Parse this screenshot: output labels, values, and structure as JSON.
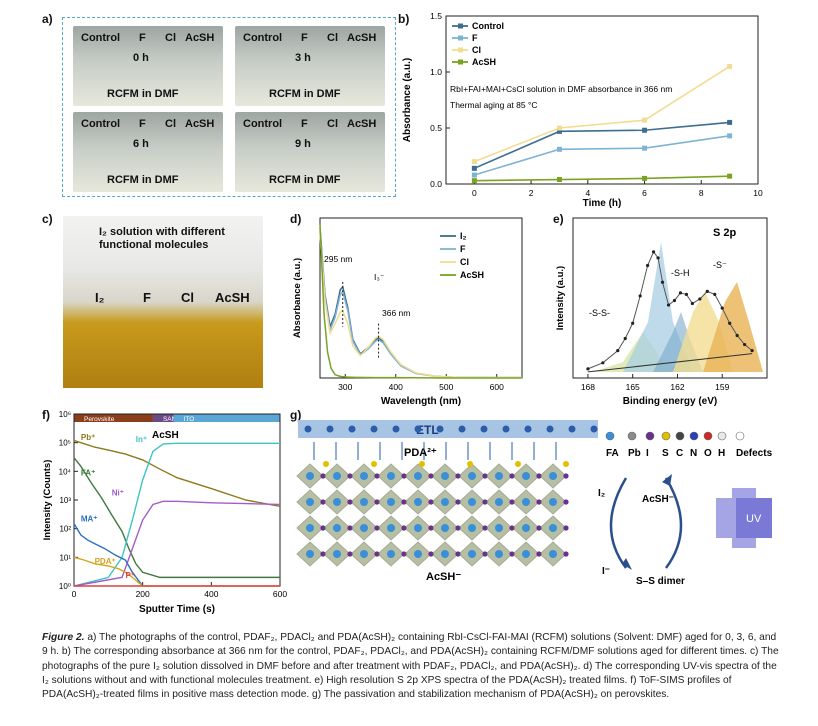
{
  "panels": {
    "a": "a)",
    "b": "b)",
    "c": "c)",
    "d": "d)",
    "e": "e)",
    "f": "f)",
    "g": "g)"
  },
  "panel_a": {
    "vials": [
      {
        "labels": [
          "Control",
          "F",
          "Cl",
          "AcSH"
        ],
        "time": "0 h",
        "solvent": "RCFM in DMF"
      },
      {
        "labels": [
          "Control",
          "F",
          "Cl",
          "AcSH"
        ],
        "time": "3 h",
        "solvent": "RCFM in DMF"
      },
      {
        "labels": [
          "Control",
          "F",
          "Cl",
          "AcSH"
        ],
        "time": "6 h",
        "solvent": "RCFM in DMF"
      },
      {
        "labels": [
          "Control",
          "F",
          "Cl",
          "AcSH"
        ],
        "time": "9 h",
        "solvent": "RCFM in DMF"
      }
    ]
  },
  "panel_c": {
    "title_line1": "I₂ solution with different",
    "title_line2": "functional molecules",
    "labels": [
      "I₂",
      "F",
      "Cl",
      "AcSH"
    ]
  },
  "chart_data": [
    {
      "type": "line",
      "panel": "b",
      "xlabel": "Time (h)",
      "ylabel": "Absorbance (a.u.)",
      "xlim": [
        -1,
        10
      ],
      "ylim": [
        0,
        1.5
      ],
      "xticks": [
        0,
        2,
        4,
        6,
        8,
        10
      ],
      "yticks": [
        0.0,
        0.5,
        1.0,
        1.5
      ],
      "annotation1": "RbI+FAI+MAI+CsCl solution in DMF absorbance in 366 nm",
      "annotation2": "Thermal aging at 85 °C",
      "series": [
        {
          "name": "Control",
          "color": "#3d6e8f",
          "x": [
            0,
            3,
            6,
            9
          ],
          "y": [
            0.14,
            0.47,
            0.48,
            0.55
          ]
        },
        {
          "name": "F",
          "color": "#7fb3d3",
          "x": [
            0,
            3,
            6,
            9
          ],
          "y": [
            0.08,
            0.31,
            0.32,
            0.43
          ]
        },
        {
          "name": "Cl",
          "color": "#f2dc92",
          "x": [
            0,
            3,
            6,
            9
          ],
          "y": [
            0.2,
            0.5,
            0.57,
            1.05
          ]
        },
        {
          "name": "AcSH",
          "color": "#7ba322",
          "x": [
            0,
            3,
            6,
            9
          ],
          "y": [
            0.03,
            0.04,
            0.05,
            0.07
          ]
        }
      ]
    },
    {
      "type": "line",
      "panel": "d",
      "xlabel": "Wavelength (nm)",
      "ylabel": "Absorbance (a.u.)",
      "xlim": [
        250,
        650
      ],
      "ylim": [
        0,
        5
      ],
      "xticks": [
        300,
        400,
        500,
        600
      ],
      "peak1": "295 nm",
      "peak2": "366 nm",
      "species": "I₃⁻",
      "series": [
        {
          "name": "I₂",
          "color": "#3d6e8f",
          "x": [
            250,
            260,
            270,
            280,
            290,
            295,
            305,
            315,
            330,
            345,
            360,
            366,
            375,
            390,
            410,
            440,
            480,
            520,
            600,
            650
          ],
          "y": [
            4.7,
            2.6,
            1.6,
            2.0,
            2.75,
            2.85,
            2.2,
            1.2,
            0.75,
            0.95,
            1.2,
            1.25,
            1.15,
            0.8,
            0.4,
            0.15,
            0.05,
            0.02,
            0.01,
            0.01
          ]
        },
        {
          "name": "F",
          "color": "#7fb3d3",
          "x": [
            250,
            260,
            270,
            280,
            290,
            295,
            305,
            315,
            330,
            345,
            360,
            366,
            375,
            390,
            410,
            440,
            480,
            520,
            600,
            650
          ],
          "y": [
            4.6,
            2.5,
            1.5,
            1.9,
            2.6,
            2.7,
            2.1,
            1.15,
            0.72,
            0.9,
            1.15,
            1.2,
            1.1,
            0.75,
            0.38,
            0.14,
            0.05,
            0.02,
            0.01,
            0.01
          ]
        },
        {
          "name": "Cl",
          "color": "#f2dc92",
          "x": [
            250,
            260,
            270,
            280,
            290,
            295,
            305,
            315,
            330,
            345,
            360,
            366,
            375,
            390,
            410,
            440,
            480,
            520,
            600,
            650
          ],
          "y": [
            4.5,
            2.4,
            1.4,
            1.7,
            2.05,
            2.1,
            1.7,
            1.0,
            0.7,
            0.95,
            1.25,
            1.3,
            1.2,
            0.82,
            0.42,
            0.16,
            0.05,
            0.02,
            0.01,
            0.01
          ]
        },
        {
          "name": "AcSH",
          "color": "#7ba322",
          "x": [
            250,
            258,
            265,
            272,
            280,
            290,
            300,
            320,
            360,
            400,
            500,
            650
          ],
          "y": [
            4.8,
            2.0,
            0.8,
            0.3,
            0.1,
            0.05,
            0.03,
            0.02,
            0.01,
            0.01,
            0.0,
            0.0
          ]
        }
      ]
    },
    {
      "type": "line",
      "panel": "e",
      "title": "S 2p",
      "xlabel": "Binding energy (eV)",
      "ylabel": "Intensity (a.u.)",
      "xlim": [
        169,
        156
      ],
      "ylim": [
        0,
        10
      ],
      "xticks": [
        168,
        165,
        162,
        159
      ],
      "peak_labels": [
        "-S-S-",
        "-S-H",
        "-S⁻"
      ],
      "series": [
        {
          "name": "raw",
          "color": "#222222",
          "x": [
            168,
            167,
            166,
            165.5,
            165,
            164.5,
            164,
            163.6,
            163.3,
            163,
            162.6,
            162.2,
            161.8,
            161.4,
            161,
            160.5,
            160,
            159.5,
            159,
            158.5,
            158,
            157.5,
            157
          ],
          "y": [
            0.6,
            1.0,
            1.8,
            2.6,
            3.6,
            5.4,
            7.4,
            8.3,
            7.9,
            6.3,
            4.8,
            5.1,
            5.6,
            5.5,
            4.9,
            5.2,
            5.7,
            5.5,
            4.6,
            3.6,
            2.8,
            2.2,
            1.8
          ]
        }
      ]
    },
    {
      "type": "line",
      "panel": "f",
      "xlabel": "Sputter Time (s)",
      "ylabel": "Intensity (Counts)",
      "xlim": [
        0,
        600
      ],
      "yscale": "log",
      "ylim": [
        1,
        1000000
      ],
      "xticks": [
        0,
        200,
        400,
        600
      ],
      "ytick_labels": [
        "10⁰",
        "10¹",
        "10²",
        "10³",
        "10⁴",
        "10⁵",
        "10⁶"
      ],
      "regions": [
        {
          "name": "Perovskite",
          "from": 0,
          "to": 230,
          "color": "#8a3f1a"
        },
        {
          "name": "SAMs/NiOₓ",
          "from": 230,
          "to": 290,
          "color": "#6b4a88"
        },
        {
          "name": "ITO",
          "from": 290,
          "to": 600,
          "color": "#5aa7d6"
        }
      ],
      "labels": {
        "acsh": "AcSH"
      },
      "series": [
        {
          "name": "Pb⁺",
          "color": "#8c7a1a",
          "x": [
            0,
            20,
            60,
            100,
            150,
            200,
            250,
            300,
            400,
            500,
            600
          ],
          "y": [
            120000,
            100000,
            70000,
            55000,
            40000,
            25000,
            12000,
            6000,
            2500,
            1000,
            600
          ]
        },
        {
          "name": "FA⁺",
          "color": "#3e7a3e",
          "x": [
            0,
            20,
            50,
            80,
            110,
            140,
            160,
            180,
            200,
            250,
            300,
            600
          ],
          "y": [
            30000,
            15000,
            4000,
            1200,
            300,
            80,
            20,
            6,
            3,
            2,
            2,
            2
          ]
        },
        {
          "name": "In⁺",
          "color": "#3fc3c3",
          "x": [
            0,
            100,
            140,
            170,
            200,
            230,
            260,
            300,
            400,
            600
          ],
          "y": [
            1,
            2,
            10,
            200,
            5000,
            50000,
            90000,
            95000,
            95000,
            95000
          ]
        },
        {
          "name": "Ni⁺",
          "color": "#a35ccc",
          "x": [
            0,
            140,
            170,
            200,
            230,
            260,
            300,
            400,
            500,
            600
          ],
          "y": [
            1,
            2,
            20,
            200,
            700,
            900,
            900,
            800,
            750,
            700
          ]
        },
        {
          "name": "MA⁺",
          "color": "#2c6fbf",
          "x": [
            0,
            20,
            40,
            60,
            90,
            120,
            150,
            170,
            200
          ],
          "y": [
            150,
            60,
            40,
            30,
            20,
            12,
            8,
            3,
            1
          ]
        },
        {
          "name": "PDA⁺",
          "color": "#d6a31c",
          "x": [
            0,
            30,
            60,
            100,
            130,
            150,
            170,
            200,
            300,
            600
          ],
          "y": [
            10,
            8,
            6,
            5,
            4,
            3,
            2,
            1,
            1,
            1
          ]
        },
        {
          "name": "P⁺",
          "color": "#d94040",
          "x": [
            0,
            600
          ],
          "y": [
            1,
            1
          ]
        }
      ]
    }
  ],
  "panel_g": {
    "etl": "ETL",
    "pda": "PDA²⁺",
    "acsh_bottom": "AcSH⁻",
    "legend": [
      "FA",
      "Pb",
      "I",
      "S",
      "C",
      "N",
      "O",
      "H",
      "Defects"
    ],
    "legend_colors": [
      "#3a8fd9",
      "#8a8a8a",
      "#6b2f8f",
      "#e2c000",
      "#444444",
      "#2d3fb5",
      "#cc2a2a",
      "#e8e8e8",
      "#ffffff"
    ],
    "cycle": {
      "i2": "I₂",
      "acsh": "AcSH⁻",
      "iminus": "I⁻",
      "dimer": "S–S dimer",
      "uv": "UV"
    }
  },
  "caption": {
    "fig_label": "Figure 2.",
    "text": "a) The photographs of the control, PDAF₂, PDACl₂ and PDA(AcSH)₂ containing RbI-CsCl-FAI-MAI (RCFM) solutions (Solvent: DMF) aged for 0, 3, 6, and 9 h. b) The corresponding absorbance at 366 nm for the control, PDAF₂, PDACl₂, and PDA(AcSH)₂ containing RCFM/DMF solutions aged for different times. c) The photographs of the pure I₂ solution dissolved in DMF before and after treatment with PDAF₂, PDACl₂, and PDA(AcSH)₂. d) The corresponding UV-vis spectra of the I₂ solutions without and with functional molecules treatment. e) High resolution S 2p XPS spectra of the PDA(AcSH)₂ treated films. f) ToF-SIMS profiles of PDA(AcSH)₂-treated films in positive mass detection mode. g) The passivation and stabilization mechanism of PDA(AcSH)₂ on perovskites."
  }
}
